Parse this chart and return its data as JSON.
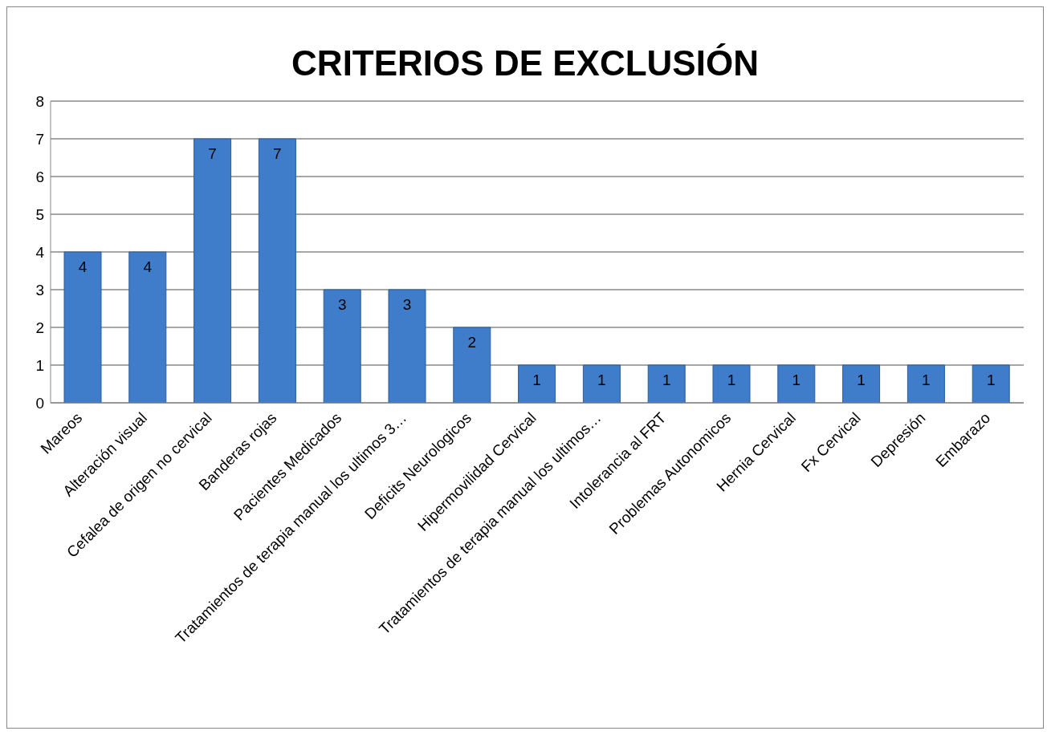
{
  "chart_data": {
    "type": "bar",
    "title": "CRITERIOS DE EXCLUSIÓN",
    "categories": [
      "Mareos",
      "Alteración visual",
      "Cefalea de origen no cervical",
      "Banderas rojas",
      "Pacientes Medicados",
      "Tratamientos de terapia manual los ultimos 3…",
      "Deficits Neurologicos",
      "Hipermovilidad Cervical",
      "Tratamientos de terapia manual los ultimos…",
      "Intolerancia al FRT",
      "Problemas Autonomicos",
      "Hernia Cervical",
      "Fx Cervical",
      "Depresión",
      "Embarazo"
    ],
    "values": [
      4,
      4,
      7,
      7,
      3,
      3,
      2,
      1,
      1,
      1,
      1,
      1,
      1,
      1,
      1
    ],
    "color": "#3f7cc9",
    "ylim": [
      0,
      8
    ],
    "yticks": [
      0,
      1,
      2,
      3,
      4,
      5,
      6,
      7,
      8
    ],
    "grid": "y",
    "data_labels": true
  }
}
